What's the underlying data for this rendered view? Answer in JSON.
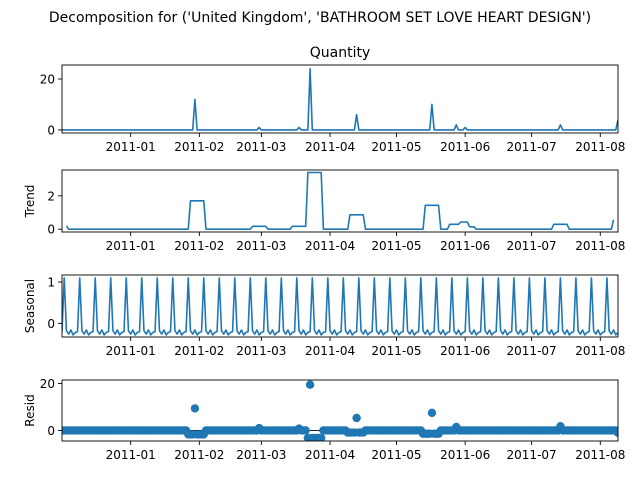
{
  "figure": {
    "suptitle": "Decomposition for ('United Kingdom', 'BATHROOM SET LOVE HEART DESIGN')"
  },
  "colors": {
    "line": "#1f77b4",
    "marker": "#1f77b4",
    "axes": "#000000"
  },
  "chart_data": [
    {
      "type": "line",
      "title": "Quantity",
      "ylabel": "",
      "ylim": [
        -1.2,
        25.5
      ],
      "yticks": [
        0,
        20
      ],
      "xticks": [
        "2011-01",
        "2011-02",
        "2011-03",
        "2011-04",
        "2011-05",
        "2011-06",
        "2011-07",
        "2011-08"
      ],
      "xrange": [
        "2010-12-01",
        "2011-08-09"
      ],
      "x": [
        "2010-12-01",
        "2011-01-29",
        "2011-01-30",
        "2011-01-31",
        "2011-02-27",
        "2011-02-28",
        "2011-03-01",
        "2011-03-17",
        "2011-03-18",
        "2011-03-19",
        "2011-03-22",
        "2011-03-23",
        "2011-03-24",
        "2011-04-12",
        "2011-04-13",
        "2011-04-14",
        "2011-05-16",
        "2011-05-17",
        "2011-05-18",
        "2011-05-27",
        "2011-05-28",
        "2011-05-29",
        "2011-05-31",
        "2011-06-01",
        "2011-06-02",
        "2011-07-13",
        "2011-07-14",
        "2011-07-15",
        "2011-08-08",
        "2011-08-09"
      ],
      "y": [
        0,
        0,
        12,
        0,
        0,
        1,
        0,
        0,
        1,
        0,
        0,
        24,
        0,
        0,
        6,
        0,
        0,
        10,
        0,
        0,
        2,
        0,
        0,
        1,
        0,
        0,
        2,
        0,
        0,
        4
      ]
    },
    {
      "type": "line",
      "title": "",
      "ylabel": "Trend",
      "ylim": [
        -0.17,
        3.55
      ],
      "yticks": [
        0,
        2
      ],
      "xticks": [
        "2011-01",
        "2011-02",
        "2011-03",
        "2011-04",
        "2011-05",
        "2011-06",
        "2011-07",
        "2011-08"
      ],
      "xrange": [
        "2010-12-01",
        "2011-08-09"
      ],
      "x": [
        "2010-12-03",
        "2010-12-04",
        "2011-01-27",
        "2011-01-28",
        "2011-02-03",
        "2011-02-04",
        "2011-02-24",
        "2011-02-25",
        "2011-03-03",
        "2011-03-04",
        "2011-03-14",
        "2011-03-15",
        "2011-03-21",
        "2011-03-22",
        "2011-03-28",
        "2011-03-29",
        "2011-04-09",
        "2011-04-10",
        "2011-04-16",
        "2011-04-17",
        "2011-05-13",
        "2011-05-14",
        "2011-05-20",
        "2011-05-21",
        "2011-05-24",
        "2011-05-25",
        "2011-05-29",
        "2011-05-30",
        "2011-06-02",
        "2011-06-03",
        "2011-06-05",
        "2011-06-06",
        "2011-07-10",
        "2011-07-11",
        "2011-07-17",
        "2011-07-18",
        "2011-08-06",
        "2011-08-07"
      ],
      "y": [
        0.2,
        0,
        0,
        1.7,
        1.7,
        0,
        0,
        0.17,
        0.17,
        0,
        0,
        0.17,
        0.17,
        3.4,
        3.4,
        0,
        0,
        0.86,
        0.86,
        0,
        0,
        1.43,
        1.43,
        0,
        0,
        0.29,
        0.29,
        0.43,
        0.43,
        0.14,
        0.14,
        0,
        0,
        0.29,
        0.29,
        0,
        0,
        0.57
      ]
    },
    {
      "type": "line",
      "title": "",
      "ylabel": "Seasonal",
      "ylim": [
        -0.33,
        1.17
      ],
      "yticks": [
        0,
        1
      ],
      "xticks": [
        "2011-01",
        "2011-02",
        "2011-03",
        "2011-04",
        "2011-05",
        "2011-06",
        "2011-07",
        "2011-08"
      ],
      "xrange": [
        "2010-12-01",
        "2011-08-09"
      ],
      "period_days": 7,
      "first_peak": "2010-12-02",
      "weekly_pattern": [
        1.1,
        -0.18,
        -0.26,
        -0.16,
        -0.28,
        -0.22,
        -0.2
      ]
    },
    {
      "type": "scatter",
      "title": "",
      "ylabel": "Resid",
      "ylim": [
        -4.5,
        21.5
      ],
      "yticks": [
        0,
        20
      ],
      "xticks": [
        "2011-01",
        "2011-02",
        "2011-03",
        "2011-04",
        "2011-05",
        "2011-06",
        "2011-07",
        "2011-08"
      ],
      "xrange": [
        "2010-12-01",
        "2011-08-09"
      ],
      "baseline": 0,
      "points": [
        {
          "x": "2011-01-30",
          "y": 9.4
        },
        {
          "x": "2011-03-23",
          "y": 19.5
        },
        {
          "x": "2011-04-13",
          "y": 5.3
        },
        {
          "x": "2011-05-17",
          "y": 7.5
        },
        {
          "x": "2011-05-28",
          "y": 1.5
        },
        {
          "x": "2011-02-28",
          "y": 1.0
        },
        {
          "x": "2011-03-18",
          "y": 0.8
        },
        {
          "x": "2011-07-14",
          "y": 1.8
        },
        {
          "x": "2011-08-09",
          "y": -1.0
        }
      ],
      "dip_ranges": [
        {
          "start": "2011-01-27",
          "end": "2011-02-03",
          "y": -1.7
        },
        {
          "start": "2011-03-22",
          "end": "2011-03-28",
          "y": -3.2
        },
        {
          "start": "2011-04-09",
          "end": "2011-04-16",
          "y": -0.9
        },
        {
          "start": "2011-05-13",
          "end": "2011-05-20",
          "y": -1.4
        }
      ]
    }
  ]
}
